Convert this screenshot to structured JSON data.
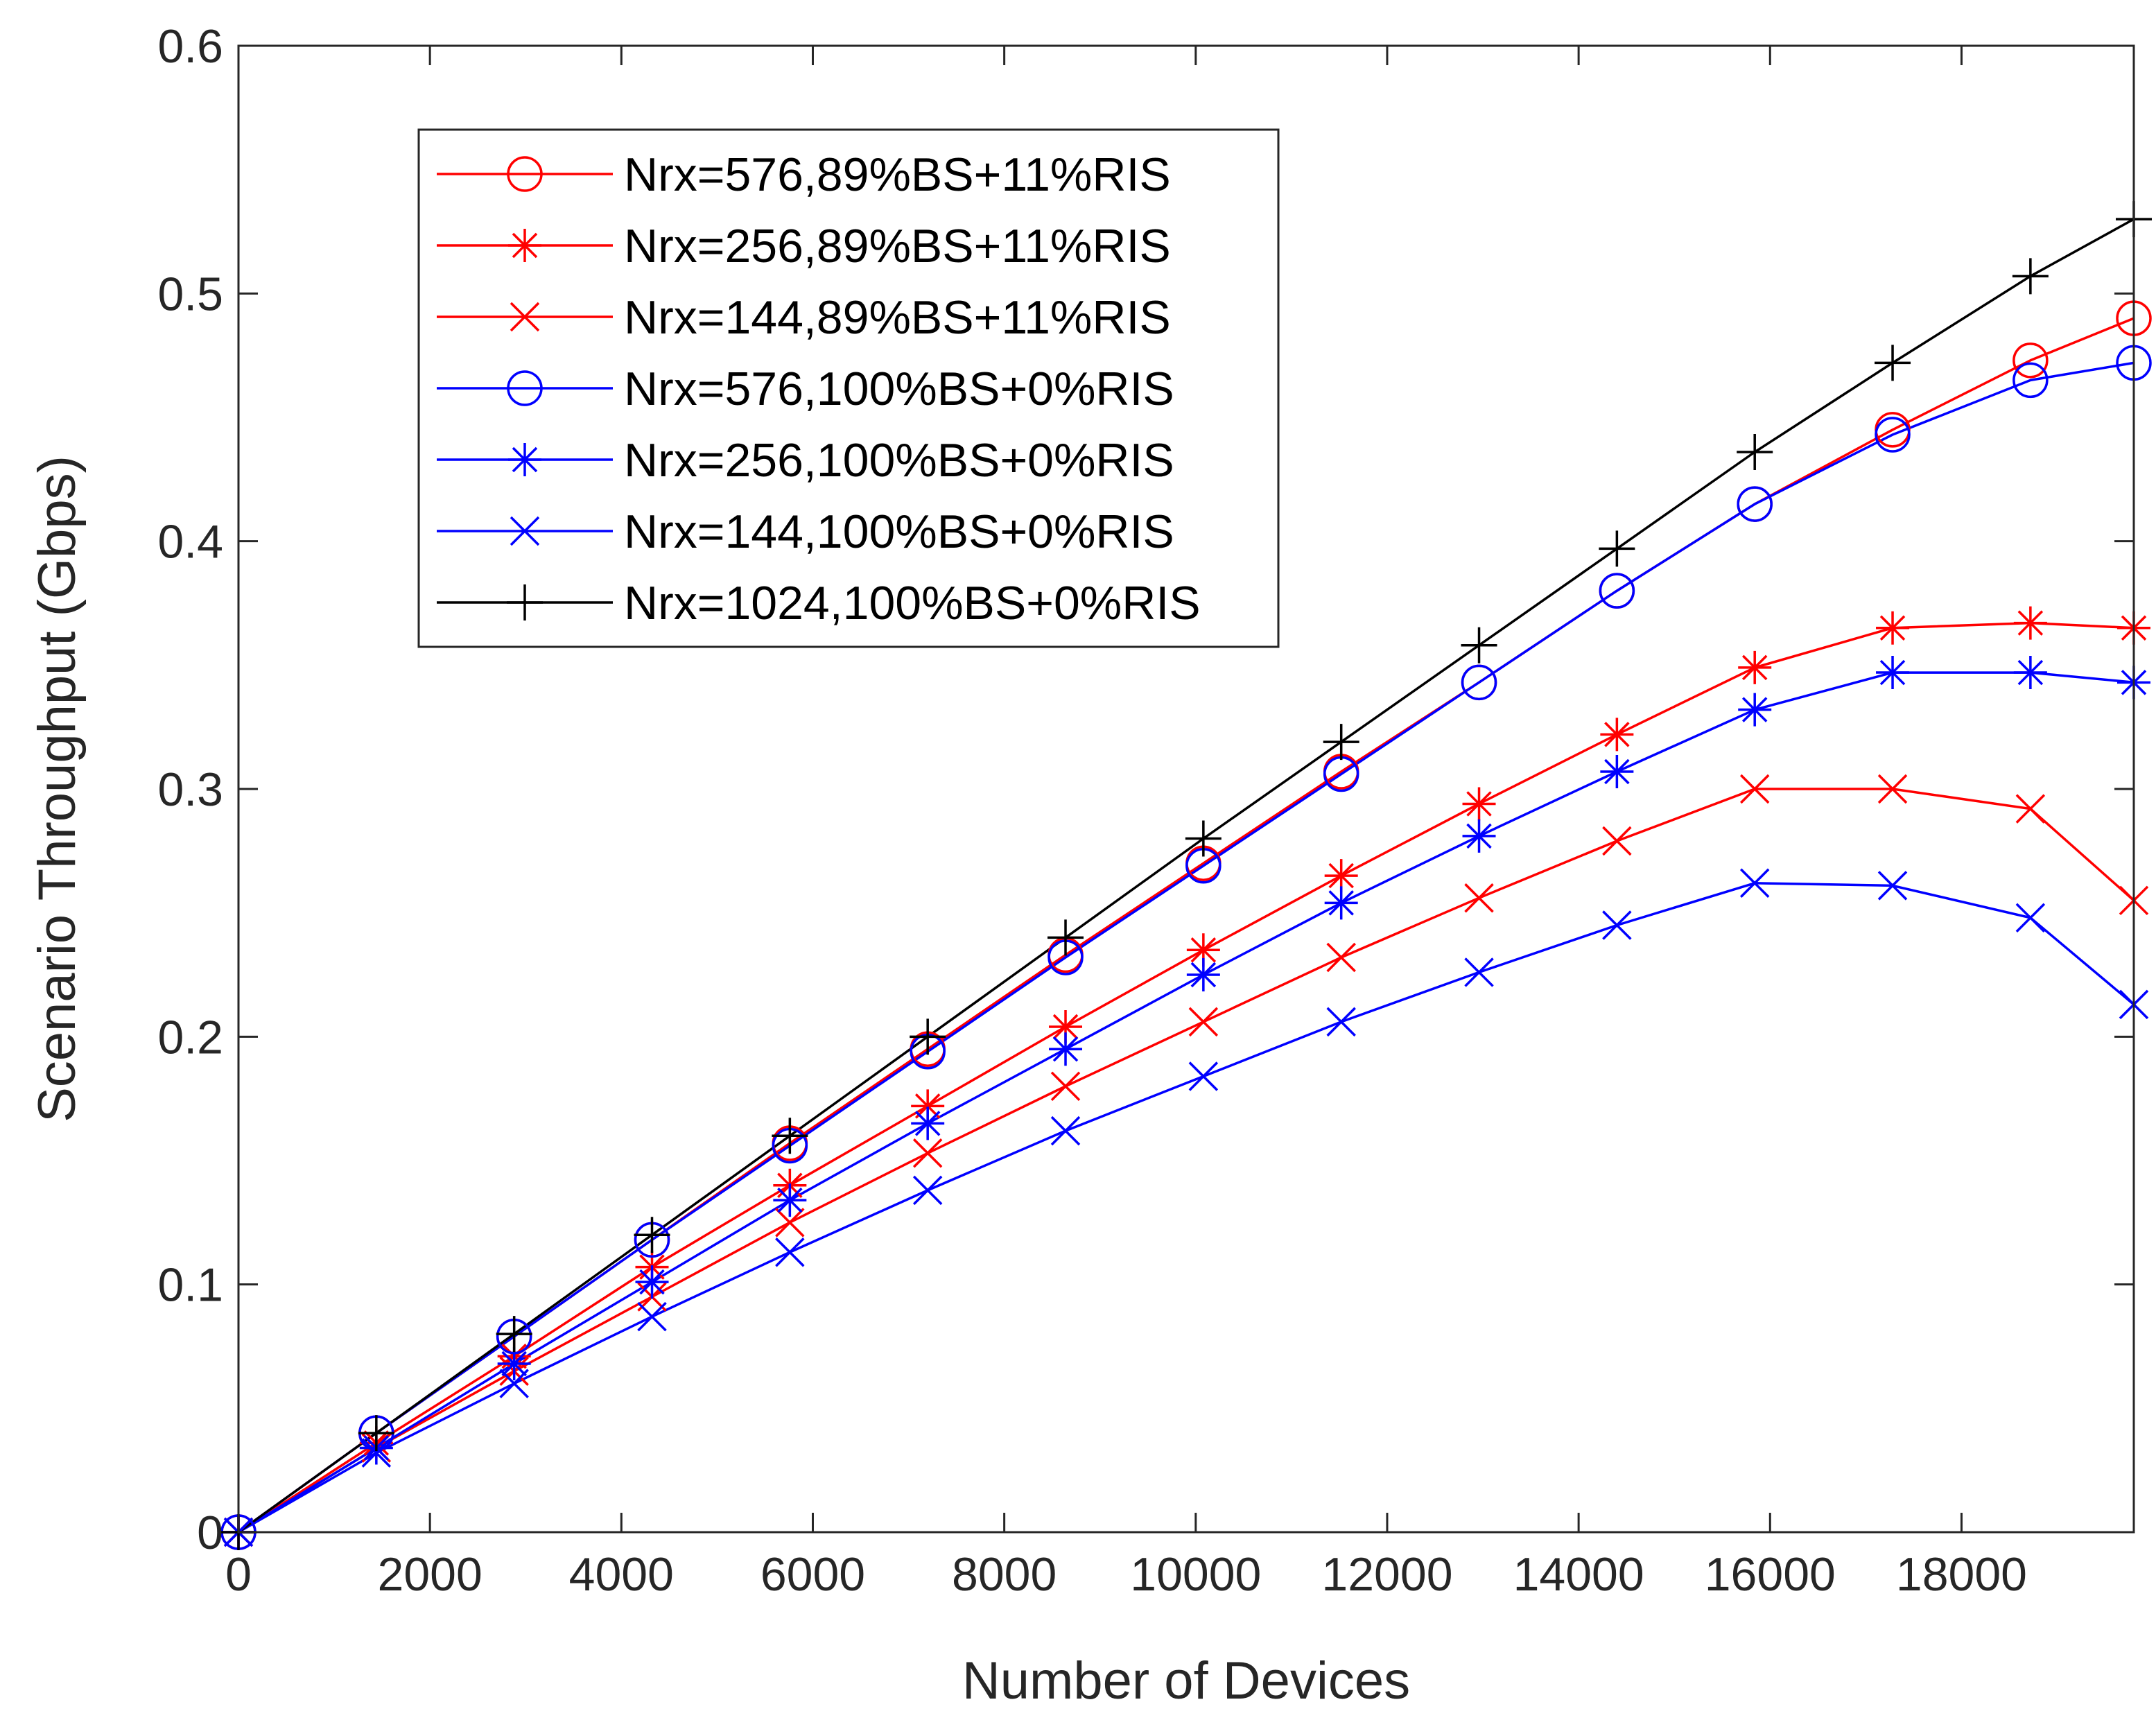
{
  "chart_data": {
    "type": "line",
    "title": "",
    "xlabel": "Number of Devices",
    "ylabel": "Scenario Throughput (Gbps)",
    "xlim": [
      0,
      19800
    ],
    "ylim": [
      0,
      0.6
    ],
    "grid": false,
    "legend_position": "top-left",
    "x_ticks": [
      0,
      2000,
      4000,
      6000,
      8000,
      10000,
      12000,
      14000,
      16000,
      18000
    ],
    "x_tick_labels": [
      "0",
      "2000",
      "4000",
      "6000",
      "8000",
      "10000",
      "12000",
      "14000",
      "16000",
      "18000"
    ],
    "y_ticks": [
      0,
      0.1,
      0.2,
      0.3,
      0.4,
      0.5,
      0.6
    ],
    "y_tick_labels": [
      "0",
      "0.1",
      "0.2",
      "0.3",
      "0.4",
      "0.5",
      "0.6"
    ],
    "x": [
      0,
      1440,
      2880,
      4320,
      5760,
      7200,
      8640,
      10080,
      11520,
      12960,
      14400,
      15840,
      17280,
      18720,
      19800
    ],
    "series": [
      {
        "name": "Nrx=576,89%BS+11%RIS",
        "color": "#ff0000",
        "marker": "circle",
        "values": [
          0,
          0.04,
          0.079,
          0.118,
          0.157,
          0.195,
          0.233,
          0.27,
          0.307,
          0.343,
          0.38,
          0.415,
          0.445,
          0.473,
          0.49
        ]
      },
      {
        "name": "Nrx=256,89%BS+11%RIS",
        "color": "#ff0000",
        "marker": "asterisk",
        "values": [
          0,
          0.036,
          0.071,
          0.107,
          0.14,
          0.172,
          0.204,
          0.235,
          0.265,
          0.294,
          0.322,
          0.349,
          0.365,
          0.367,
          0.365
        ]
      },
      {
        "name": "Nrx=144,89%BS+11%RIS",
        "color": "#ff0000",
        "marker": "x",
        "values": [
          0,
          0.034,
          0.065,
          0.095,
          0.125,
          0.153,
          0.18,
          0.206,
          0.232,
          0.256,
          0.279,
          0.3,
          0.3,
          0.292,
          0.255
        ]
      },
      {
        "name": "Nrx=576,100%BS+0%RIS",
        "color": "#0000ff",
        "marker": "circle",
        "values": [
          0,
          0.04,
          0.079,
          0.118,
          0.156,
          0.194,
          0.232,
          0.269,
          0.306,
          0.343,
          0.38,
          0.415,
          0.443,
          0.465,
          0.472
        ]
      },
      {
        "name": "Nrx=256,100%BS+0%RIS",
        "color": "#0000ff",
        "marker": "asterisk",
        "values": [
          0,
          0.034,
          0.068,
          0.101,
          0.134,
          0.165,
          0.195,
          0.225,
          0.254,
          0.281,
          0.307,
          0.332,
          0.347,
          0.347,
          0.343
        ]
      },
      {
        "name": "Nrx=144,100%BS+0%RIS",
        "color": "#0000ff",
        "marker": "x",
        "values": [
          0,
          0.032,
          0.06,
          0.087,
          0.113,
          0.138,
          0.162,
          0.184,
          0.206,
          0.226,
          0.245,
          0.262,
          0.261,
          0.248,
          0.213
        ]
      },
      {
        "name": "Nrx=1024,100%BS+0%RIS",
        "color": "#000000",
        "marker": "plus",
        "values": [
          0,
          0.04,
          0.08,
          0.12,
          0.16,
          0.2,
          0.24,
          0.28,
          0.319,
          0.358,
          0.397,
          0.436,
          0.472,
          0.507,
          0.53
        ]
      }
    ]
  }
}
